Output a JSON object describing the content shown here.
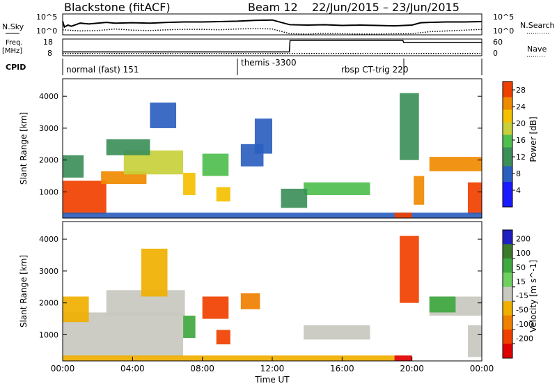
{
  "header": {
    "station": "Blackstone (fitACF)",
    "beam": "Beam 12",
    "date_range": "22/Jun/2015 – 23/Jun/2015"
  },
  "chart_data": [
    {
      "id": "nsky-nsearch",
      "type": "line",
      "left_label": "N.Sky",
      "right_label": "N.Search",
      "left_ticks": [
        "10^5",
        "10^0"
      ],
      "right_ticks": [
        "10^5",
        "10^0"
      ],
      "log_scale": true,
      "series": [
        {
          "name": "N.Sky",
          "style": "solid",
          "x": [
            0,
            0.1,
            0.3,
            0.5,
            1,
            1.5,
            2,
            2.5,
            3,
            4,
            5,
            6,
            7,
            8,
            9,
            10,
            11,
            12,
            13,
            14,
            15,
            16,
            17,
            18,
            19,
            20,
            20.5,
            21,
            22,
            23,
            24
          ],
          "y": [
            3.5,
            2,
            2.5,
            2.2,
            3,
            2.8,
            3,
            3.2,
            3,
            3.1,
            3,
            3.2,
            3.3,
            3.3,
            3.4,
            3.5,
            3.7,
            3.8,
            2.6,
            2.5,
            2.6,
            2.4,
            2.5,
            2.4,
            2.3,
            2.5,
            3.1,
            3.2,
            3.3,
            3.3,
            3.4
          ]
        },
        {
          "name": "N.Search",
          "style": "dotted",
          "x": [
            0,
            1,
            2,
            3,
            4,
            5,
            6,
            7,
            8,
            9,
            10,
            11,
            12,
            13,
            14,
            15,
            16,
            17,
            18,
            19,
            20,
            21,
            22,
            23,
            24
          ],
          "y": [
            1.3,
            1.0,
            1.1,
            1.5,
            1.2,
            1.1,
            1.3,
            1.4,
            1.4,
            1.3,
            1.5,
            1.6,
            1.5,
            0.3,
            0.2,
            0.4,
            0.3,
            0.2,
            0.2,
            0.3,
            0.3,
            0.8,
            1.0,
            1.2,
            1.4
          ]
        }
      ]
    },
    {
      "id": "freq-nave",
      "type": "line",
      "left_label": "Freq. [MHz]",
      "right_label": "Nave",
      "left_ticks": [
        18,
        8
      ],
      "right_ticks": [
        60,
        0
      ],
      "ylim_left": [
        8,
        18
      ],
      "ylim_right": [
        0,
        60
      ],
      "series": [
        {
          "name": "Freq. [MHz]",
          "style": "solid",
          "x": [
            0,
            12.98,
            13.02,
            19.48,
            19.52,
            24
          ],
          "y": [
            10.5,
            10.5,
            18,
            18,
            16.7,
            16.7
          ]
        },
        {
          "name": "Nave",
          "style": "dotted",
          "x": [
            0,
            24
          ],
          "y": [
            9,
            9
          ]
        }
      ]
    },
    {
      "id": "cpid",
      "type": "table",
      "label": "CPID",
      "segments": [
        {
          "start": 0,
          "end": 10,
          "text": "normal (fast) 151"
        },
        {
          "start": 10,
          "end": 19.5,
          "text": "themis -3300"
        },
        {
          "start": 19.5,
          "end": 24,
          "text": "rbsp CT-trig 220"
        }
      ]
    },
    {
      "id": "power",
      "type": "heatmap",
      "ylabel": "Slant Range [km]",
      "colorbar_label": "Power [dB]",
      "xlim": [
        0,
        24
      ],
      "ylim": [
        180,
        4550
      ],
      "yticks": [
        1000,
        2000,
        3000,
        4000
      ],
      "colorbar_ticks": [
        28,
        24,
        20,
        16,
        12,
        8,
        4
      ],
      "colorbar_range": [
        0,
        30
      ],
      "blobs": [
        {
          "t0": 0,
          "t1": 2.5,
          "r0": 300,
          "r1": 1350,
          "v": 27
        },
        {
          "t0": 0,
          "t1": 1.2,
          "r0": 1450,
          "r1": 2150,
          "v": 13
        },
        {
          "t0": 2.2,
          "t1": 4.8,
          "r0": 1250,
          "r1": 1650,
          "v": 23
        },
        {
          "t0": 3.5,
          "t1": 6.9,
          "r0": 1550,
          "r1": 2300,
          "v": 17
        },
        {
          "t0": 2.5,
          "t1": 5.0,
          "r0": 2150,
          "r1": 2650,
          "v": 10
        },
        {
          "t0": 5.0,
          "t1": 6.5,
          "r0": 3000,
          "r1": 3800,
          "v": 6
        },
        {
          "t0": 6.9,
          "t1": 7.6,
          "r0": 900,
          "r1": 1600,
          "v": 20
        },
        {
          "t0": 8.0,
          "t1": 9.5,
          "r0": 1500,
          "r1": 2200,
          "v": 14
        },
        {
          "t0": 8.8,
          "t1": 9.6,
          "r0": 700,
          "r1": 1150,
          "v": 21
        },
        {
          "t0": 10.2,
          "t1": 11.5,
          "r0": 1800,
          "r1": 2500,
          "v": 9
        },
        {
          "t0": 11.0,
          "t1": 12.0,
          "r0": 2200,
          "r1": 3300,
          "v": 6
        },
        {
          "t0": 13.8,
          "t1": 17.6,
          "r0": 900,
          "r1": 1300,
          "v": 14
        },
        {
          "t0": 12.5,
          "t1": 14.0,
          "r0": 500,
          "r1": 1100,
          "v": 12
        },
        {
          "t0": 19.3,
          "t1": 20.4,
          "r0": 2000,
          "r1": 4100,
          "v": 10
        },
        {
          "t0": 20.1,
          "t1": 20.7,
          "r0": 600,
          "r1": 1500,
          "v": 24
        },
        {
          "t0": 21.0,
          "t1": 24.0,
          "r0": 1650,
          "r1": 2100,
          "v": 24
        },
        {
          "t0": 23.2,
          "t1": 24.0,
          "r0": 300,
          "r1": 1300,
          "v": 26
        },
        {
          "t0": 0,
          "t1": 24,
          "r0": 180,
          "r1": 350,
          "v": 9
        },
        {
          "t0": 19.0,
          "t1": 20.0,
          "r0": 180,
          "r1": 350,
          "v": 29
        }
      ]
    },
    {
      "id": "velocity",
      "type": "heatmap",
      "ylabel": "Slant Range [km]",
      "xlabel": "Time UT",
      "colorbar_label": "Velocity [m s^-1]",
      "xlim": [
        0,
        24
      ],
      "ylim": [
        180,
        4550
      ],
      "yticks": [
        1000,
        2000,
        3000,
        4000
      ],
      "xticks": [
        "00:00",
        "04:00",
        "08:00",
        "12:00",
        "16:00",
        "20:00",
        "00:00"
      ],
      "colorbar_ticks": [
        200,
        100,
        50,
        15,
        -15,
        -50,
        -100,
        -200
      ],
      "colorbar_range": [
        -250,
        250
      ],
      "blobs": [
        {
          "t0": 0,
          "t1": 6.9,
          "r0": 300,
          "r1": 1700,
          "v": 0
        },
        {
          "t0": 2.5,
          "t1": 7.0,
          "r0": 1600,
          "r1": 2400,
          "v": 0
        },
        {
          "t0": 0,
          "t1": 1.5,
          "r0": 1400,
          "r1": 2200,
          "v": -40
        },
        {
          "t0": 4.5,
          "t1": 6.0,
          "r0": 2200,
          "r1": 3700,
          "v": -40
        },
        {
          "t0": 6.9,
          "t1": 7.6,
          "r0": 900,
          "r1": 1600,
          "v": 60
        },
        {
          "t0": 8.0,
          "t1": 9.5,
          "r0": 1500,
          "r1": 2200,
          "v": -200
        },
        {
          "t0": 8.8,
          "t1": 9.6,
          "r0": 700,
          "r1": 1150,
          "v": -200
        },
        {
          "t0": 10.2,
          "t1": 11.3,
          "r0": 1800,
          "r1": 2300,
          "v": -60
        },
        {
          "t0": 13.8,
          "t1": 17.6,
          "r0": 850,
          "r1": 1300,
          "v": 0
        },
        {
          "t0": 19.3,
          "t1": 20.4,
          "r0": 2000,
          "r1": 4100,
          "v": -160
        },
        {
          "t0": 21.0,
          "t1": 24.0,
          "r0": 1600,
          "r1": 2200,
          "v": 0
        },
        {
          "t0": 21.0,
          "t1": 22.5,
          "r0": 1700,
          "r1": 2200,
          "v": 70
        },
        {
          "t0": 23.2,
          "t1": 24.0,
          "r0": 300,
          "r1": 1300,
          "v": 0
        },
        {
          "t0": 0,
          "t1": 19,
          "r0": 180,
          "r1": 350,
          "v": -40
        },
        {
          "t0": 19.0,
          "t1": 20.0,
          "r0": 180,
          "r1": 350,
          "v": -220
        }
      ]
    }
  ]
}
